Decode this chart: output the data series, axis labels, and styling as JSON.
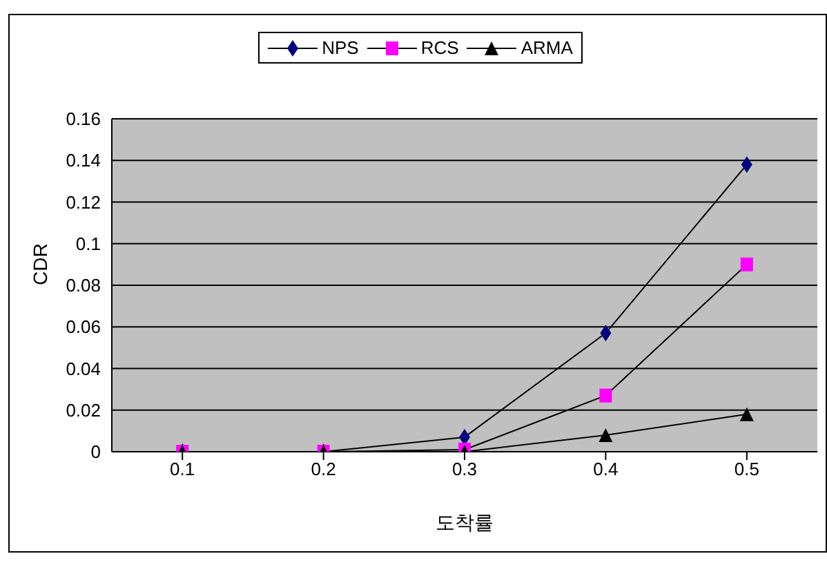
{
  "chart_data": {
    "type": "line",
    "xlabel": "도착률",
    "ylabel": "CDR",
    "categories": [
      "0.1",
      "0.2",
      "0.3",
      "0.4",
      "0.5"
    ],
    "series": [
      {
        "name": "NPS",
        "color": "#000080",
        "marker": "diamond",
        "values": [
          0,
          0,
          0.007,
          0.057,
          0.138
        ]
      },
      {
        "name": "RCS",
        "color": "#ff00ff",
        "marker": "square",
        "values": [
          0,
          0,
          0.001,
          0.027,
          0.09
        ]
      },
      {
        "name": "ARMA",
        "color": "#000000",
        "marker": "triangle",
        "values": [
          0,
          0,
          0,
          0.008,
          0.018
        ]
      }
    ],
    "ylim": [
      0,
      0.16
    ],
    "yticks": [
      0,
      0.02,
      0.04,
      0.06,
      0.08,
      0.1,
      0.12,
      0.14,
      0.16
    ],
    "grid": "y",
    "legend": "top",
    "line_style": "solid"
  }
}
